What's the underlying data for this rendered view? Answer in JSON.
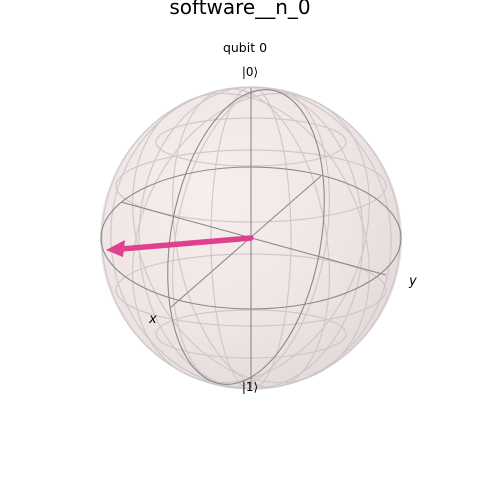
{
  "figure": {
    "title": "software__n_0",
    "subtitle": "qubit 0"
  },
  "labels": {
    "ket_zero": "|0⟩",
    "ket_one": "|1⟩",
    "x_axis": "x",
    "y_axis": "y"
  },
  "state_vector": {
    "qubit": 0,
    "color": "#e0418f"
  },
  "colors": {
    "sphere_fill": "#eee0e0",
    "wire": "#8a8a8a",
    "wire_light": "#c9c4c4"
  }
}
